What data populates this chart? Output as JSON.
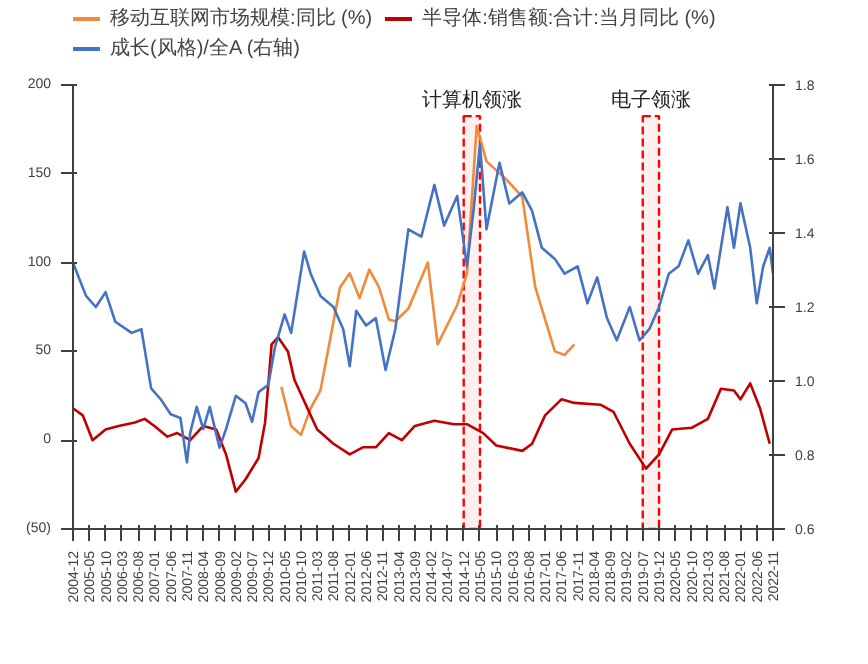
{
  "chart_data": {
    "type": "line",
    "legend": "top",
    "grid": false,
    "line_style": "solid",
    "marker": "none",
    "xlim": [
      "2004-12",
      "2022-11"
    ],
    "xticks": [
      "2004-12",
      "2005-05",
      "2005-10",
      "2006-03",
      "2006-08",
      "2007-01",
      "2007-06",
      "2007-11",
      "2008-04",
      "2008-09",
      "2009-02",
      "2009-07",
      "2009-12",
      "2010-05",
      "2010-10",
      "2011-03",
      "2011-08",
      "2012-01",
      "2012-06",
      "2012-11",
      "2013-04",
      "2013-09",
      "2014-02",
      "2014-07",
      "2014-12",
      "2015-05",
      "2015-10",
      "2016-03",
      "2016-08",
      "2017-01",
      "2017-06",
      "2017-11",
      "2018-04",
      "2018-09",
      "2019-02",
      "2019-07",
      "2019-12",
      "2020-05",
      "2020-10",
      "2021-03",
      "2021-08",
      "2022-01",
      "2022-06",
      "2022-11"
    ],
    "ylim": [
      -50,
      200
    ],
    "yticks": [
      {
        "value": -50,
        "label": "(50)"
      },
      0,
      50,
      100,
      150,
      200
    ],
    "y2lim": [
      0.6,
      1.8
    ],
    "y2ticks": [
      0.6,
      0.8,
      {
        "value": 1.0,
        "label": "1.0"
      },
      1.2,
      1.4,
      1.6,
      1.8
    ],
    "bands": [
      {
        "axis": "x",
        "from": "2014-12",
        "to": "2015-05",
        "label": "计算机领涨",
        "color": "#ff0000"
      },
      {
        "axis": "x",
        "from": "2019-07",
        "to": "2019-12",
        "label": "电子领涨",
        "color": "#ff0000"
      }
    ],
    "series": [
      {
        "name": "移动互联网市场规模:同比 (%)",
        "color": "#f08a3c",
        "x": [
          "2010-04",
          "2010-07",
          "2010-10",
          "2011-01",
          "2011-04",
          "2011-10",
          "2012-01",
          "2012-04",
          "2012-07",
          "2012-10",
          "2013-01",
          "2013-03",
          "2013-07",
          "2014-01",
          "2014-04",
          "2014-10",
          "2015-01",
          "2015-04",
          "2015-07",
          "2016-01",
          "2016-06",
          "2016-10",
          "2017-04",
          "2017-07",
          "2017-10"
        ],
        "values": [
          30,
          8,
          3,
          18,
          28,
          86,
          94,
          80,
          96,
          86,
          68,
          67,
          74,
          100,
          54,
          76,
          94,
          177,
          157,
          147,
          137,
          86,
          50,
          48,
          54
        ]
      },
      {
        "name": "半导体:销售额:合计:当月同比 (%)",
        "color": "#c00000",
        "x": [
          "2004-12",
          "2005-03",
          "2005-06",
          "2005-10",
          "2006-02",
          "2006-07",
          "2006-10",
          "2007-01",
          "2007-05",
          "2007-08",
          "2007-12",
          "2008-04",
          "2008-08",
          "2008-11",
          "2009-02",
          "2009-05",
          "2009-09",
          "2009-11",
          "2010-01",
          "2010-03",
          "2010-06",
          "2010-08",
          "2011-01",
          "2011-03",
          "2011-08",
          "2012-01",
          "2012-05",
          "2012-09",
          "2013-01",
          "2013-05",
          "2013-09",
          "2014-03",
          "2014-09",
          "2015-01",
          "2015-06",
          "2015-10",
          "2016-06",
          "2016-09",
          "2017-01",
          "2017-06",
          "2017-10",
          "2018-06",
          "2018-10",
          "2019-03",
          "2019-08",
          "2019-12",
          "2020-04",
          "2020-10",
          "2021-03",
          "2021-07",
          "2021-11",
          "2022-01",
          "2022-04",
          "2022-07",
          "2022-10"
        ],
        "values": [
          18,
          14,
          0,
          6,
          8,
          10,
          12,
          8,
          2,
          4,
          0,
          8,
          6,
          -8,
          -29,
          -22,
          -10,
          10,
          54,
          58,
          50,
          34,
          14,
          6,
          -2,
          -8,
          -4,
          -4,
          4,
          0,
          8,
          11,
          9,
          9,
          4,
          -3,
          -6,
          -2,
          14,
          23,
          21,
          20,
          16,
          -2,
          -16,
          -8,
          6,
          7,
          12,
          29,
          28,
          23,
          32,
          18,
          -2
        ]
      },
      {
        "name": "成长(风格)/全A (右轴)",
        "color": "#4472c4",
        "axis": "y2",
        "x": [
          "2004-12",
          "2005-04",
          "2005-07",
          "2005-10",
          "2006-01",
          "2006-06",
          "2006-09",
          "2006-12",
          "2007-03",
          "2007-06",
          "2007-09",
          "2007-11",
          "2007-12",
          "2008-02",
          "2008-04",
          "2008-06",
          "2008-09",
          "2008-11",
          "2009-02",
          "2009-05",
          "2009-07",
          "2009-09",
          "2009-12",
          "2010-02",
          "2010-05",
          "2010-07",
          "2010-09",
          "2010-11",
          "2011-01",
          "2011-04",
          "2011-08",
          "2011-11",
          "2012-01",
          "2012-03",
          "2012-06",
          "2012-09",
          "2012-12",
          "2013-03",
          "2013-07",
          "2013-11",
          "2014-03",
          "2014-06",
          "2014-10",
          "2015-01",
          "2015-03",
          "2015-05",
          "2015-07",
          "2015-11",
          "2016-02",
          "2016-06",
          "2016-09",
          "2016-12",
          "2017-04",
          "2017-07",
          "2017-11",
          "2018-02",
          "2018-05",
          "2018-08",
          "2018-11",
          "2019-03",
          "2019-06",
          "2019-09",
          "2019-12",
          "2020-03",
          "2020-06",
          "2020-09",
          "2020-12",
          "2021-03",
          "2021-05",
          "2021-09",
          "2021-11",
          "2022-01",
          "2022-04",
          "2022-06",
          "2022-08",
          "2022-10",
          "2022-11"
        ],
        "values": [
          1.32,
          1.23,
          1.2,
          1.24,
          1.16,
          1.13,
          1.14,
          0.98,
          0.95,
          0.91,
          0.9,
          0.78,
          0.86,
          0.93,
          0.87,
          0.93,
          0.82,
          0.87,
          0.96,
          0.94,
          0.89,
          0.97,
          0.99,
          1.09,
          1.18,
          1.13,
          1.24,
          1.35,
          1.29,
          1.23,
          1.2,
          1.14,
          1.04,
          1.19,
          1.15,
          1.17,
          1.03,
          1.14,
          1.41,
          1.39,
          1.53,
          1.42,
          1.5,
          1.31,
          1.46,
          1.64,
          1.41,
          1.59,
          1.48,
          1.51,
          1.46,
          1.36,
          1.33,
          1.29,
          1.31,
          1.21,
          1.28,
          1.17,
          1.11,
          1.2,
          1.11,
          1.14,
          1.2,
          1.29,
          1.31,
          1.38,
          1.29,
          1.34,
          1.25,
          1.47,
          1.36,
          1.48,
          1.36,
          1.21,
          1.31,
          1.36,
          1.29
        ]
      }
    ]
  }
}
